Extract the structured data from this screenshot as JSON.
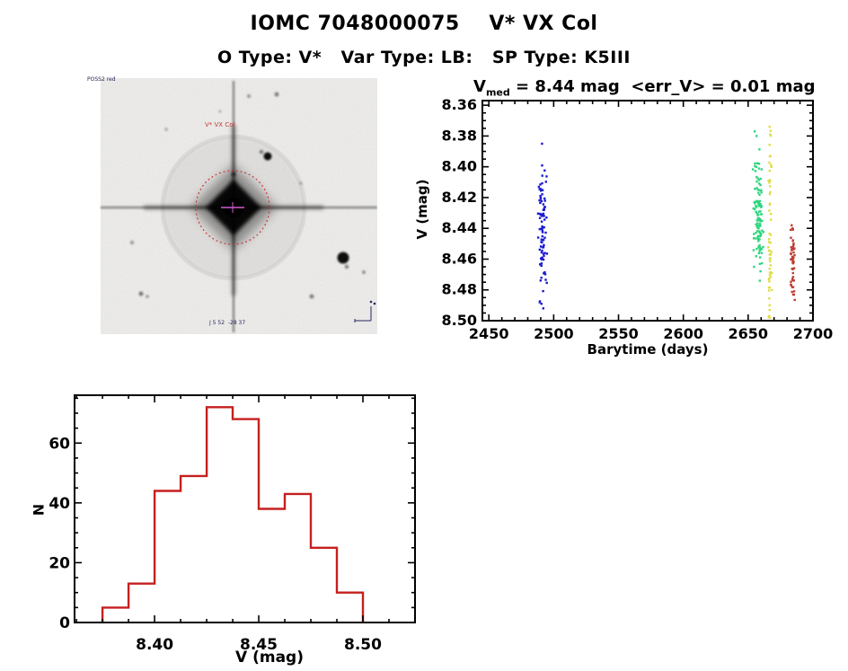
{
  "header": {
    "title": "IOMC 7048000075    V* VX Col",
    "subtitle": "O Type: V*   Var Type: LB:   SP Type: K5III"
  },
  "star_image": {
    "survey_caption": "POSS2 red",
    "target_label": "V* VX Col",
    "coords_caption": "J 5 52  -28 37",
    "compass": {
      "north": "N",
      "east": "E"
    }
  },
  "chart_data": [
    {
      "type": "scatter",
      "title": {
        "prefix": "V",
        "sub": "med",
        "rest": " = 8.44 mag  <err_V> = 0.01 mag"
      },
      "v_med_mag": 8.44,
      "err_v_mag": 0.01,
      "xlabel": "Barytime (days)",
      "ylabel": "V (mag)",
      "xlim": [
        2445,
        2700
      ],
      "ylim": [
        8.357,
        8.5
      ],
      "y_inverted": true,
      "grid": false,
      "legend": "none",
      "x_ticks": [
        2450,
        2500,
        2550,
        2600,
        2650,
        2700
      ],
      "x_minor_step": 10,
      "y_ticks": [
        8.36,
        8.38,
        8.4,
        8.42,
        8.44,
        8.46,
        8.48,
        8.5
      ],
      "y_minor_step": 0.005,
      "marker": "square-2px",
      "series": [
        {
          "name": "epoch-1-blue",
          "color": "#1a1ad1",
          "n": 88,
          "t_mean": 2491.5,
          "t_sd": 1.6,
          "t_range": [
            2487.5,
            2496.0
          ],
          "mag_mean": 8.437,
          "mag_sd": 0.021,
          "mag_range": [
            8.383,
            8.492
          ],
          "mag_uniform_frac": 0.0,
          "extra_points": [
            [
              2491.0,
              8.385
            ],
            [
              2492.0,
              8.492
            ],
            [
              2490.5,
              8.489
            ]
          ]
        },
        {
          "name": "epoch-2-green",
          "color": "#2fd57e",
          "n": 115,
          "t_mean": 2658.0,
          "t_sd": 1.9,
          "t_range": [
            2653.5,
            2662.5
          ],
          "mag_mean": 8.431,
          "mag_sd": 0.018,
          "mag_range": [
            8.386,
            8.477
          ],
          "mag_uniform_frac": 0.0,
          "extra_points": [
            [
              2655.0,
              8.377
            ],
            [
              2656.5,
              8.38
            ],
            [
              2659.0,
              8.474
            ]
          ]
        },
        {
          "name": "epoch-3-yellow",
          "color": "#dedc48",
          "n": 58,
          "t_mean": 2666.8,
          "t_sd": 0.7,
          "t_range": [
            2665.2,
            2668.6
          ],
          "mag_mean": 8.447,
          "mag_sd": 0.03,
          "mag_range": [
            8.374,
            8.5
          ],
          "mag_uniform_frac": 0.4,
          "extra_points": [
            [
              2666.5,
              8.374
            ],
            [
              2667.0,
              8.379
            ],
            [
              2666.8,
              8.498
            ]
          ]
        },
        {
          "name": "epoch-4-red",
          "color": "#c03a30",
          "n": 46,
          "t_mean": 2684.6,
          "t_sd": 0.9,
          "t_range": [
            2682.8,
            2686.6
          ],
          "mag_mean": 8.464,
          "mag_sd": 0.013,
          "mag_range": [
            8.437,
            8.496
          ],
          "mag_uniform_frac": 0.0,
          "extra_points": [
            [
              2683.6,
              8.438
            ],
            [
              2684.2,
              8.44
            ]
          ]
        }
      ]
    },
    {
      "type": "bar",
      "subtype": "histogram-staircase",
      "xlabel": "V (mag)",
      "ylabel": "N",
      "bin_start": 8.375,
      "bin_width": 0.0125,
      "bin_edges": [
        8.375,
        8.3875,
        8.4,
        8.4125,
        8.425,
        8.4375,
        8.45,
        8.4625,
        8.475,
        8.4875,
        8.5
      ],
      "counts": [
        5,
        13,
        44,
        49,
        72,
        68,
        38,
        43,
        25,
        10
      ],
      "xlim": [
        8.3616,
        8.525
      ],
      "ylim": [
        0,
        76
      ],
      "x_ticks": [
        8.4,
        8.45,
        8.5
      ],
      "x_minor_step": 0.0125,
      "y_ticks": [
        0,
        20,
        40,
        60
      ],
      "y_minor_step": 5,
      "bar_color": "#c51f1f",
      "grid": false
    }
  ]
}
